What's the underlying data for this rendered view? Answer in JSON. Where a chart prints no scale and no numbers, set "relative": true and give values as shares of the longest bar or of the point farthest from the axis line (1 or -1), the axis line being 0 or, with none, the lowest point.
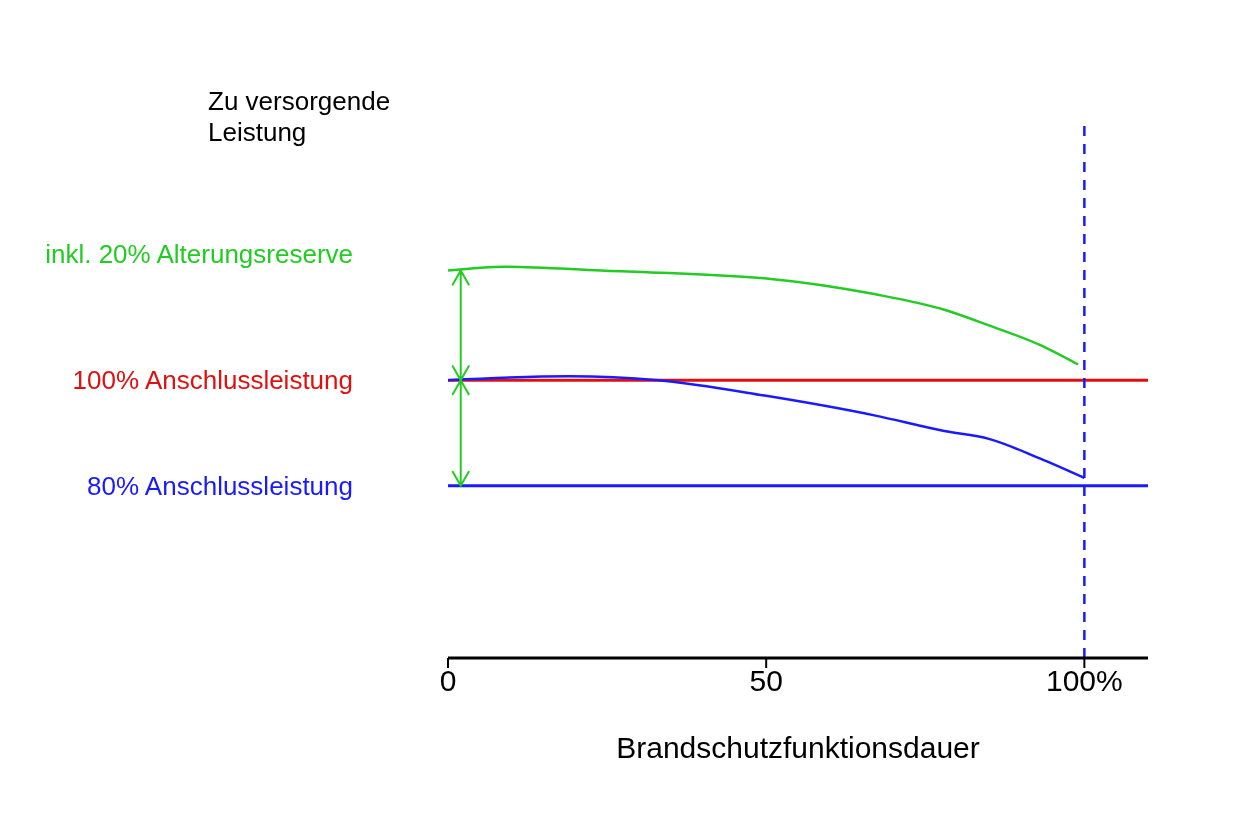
{
  "chart_data": {
    "type": "line",
    "xlabel": "Brandschutzfunktionsdauer",
    "ylabel": "Zu versorgende Leistung",
    "relative": true,
    "xlim": [
      0,
      110
    ],
    "xticks": [
      0,
      50,
      {
        "value": 100,
        "label": "100%"
      }
    ],
    "tick_labels": "x",
    "marker": "none",
    "legend": false,
    "series": [
      {
        "name": "inkl. 20% Alterungsreserve",
        "color": "#22cc22",
        "x": [
          0,
          9,
          24,
          50,
          67,
          78,
          85,
          93,
          99
        ],
        "values": [
          0.99,
          1,
          0.99,
          0.97,
          0.93,
          0.89,
          0.85,
          0.8,
          0.75
        ]
      },
      {
        "color": "#1a1aff",
        "x": [
          0,
          19,
          33,
          50,
          67,
          78,
          85,
          93,
          100
        ],
        "values": [
          0.71,
          0.72,
          0.71,
          0.67,
          0.62,
          0.58,
          0.56,
          0.51,
          0.46
        ]
      }
    ],
    "ref_lines": [
      {
        "axis": "y",
        "value": 0.71,
        "label": "100% Anschlussleistung",
        "color": "#e01010"
      },
      {
        "axis": "y",
        "value": 0.44,
        "label": "80% Anschlussleistung",
        "color": "#1a1aff"
      },
      {
        "axis": "x",
        "value": 100,
        "color": "#1a1aff",
        "line_style": "dashed"
      }
    ]
  }
}
